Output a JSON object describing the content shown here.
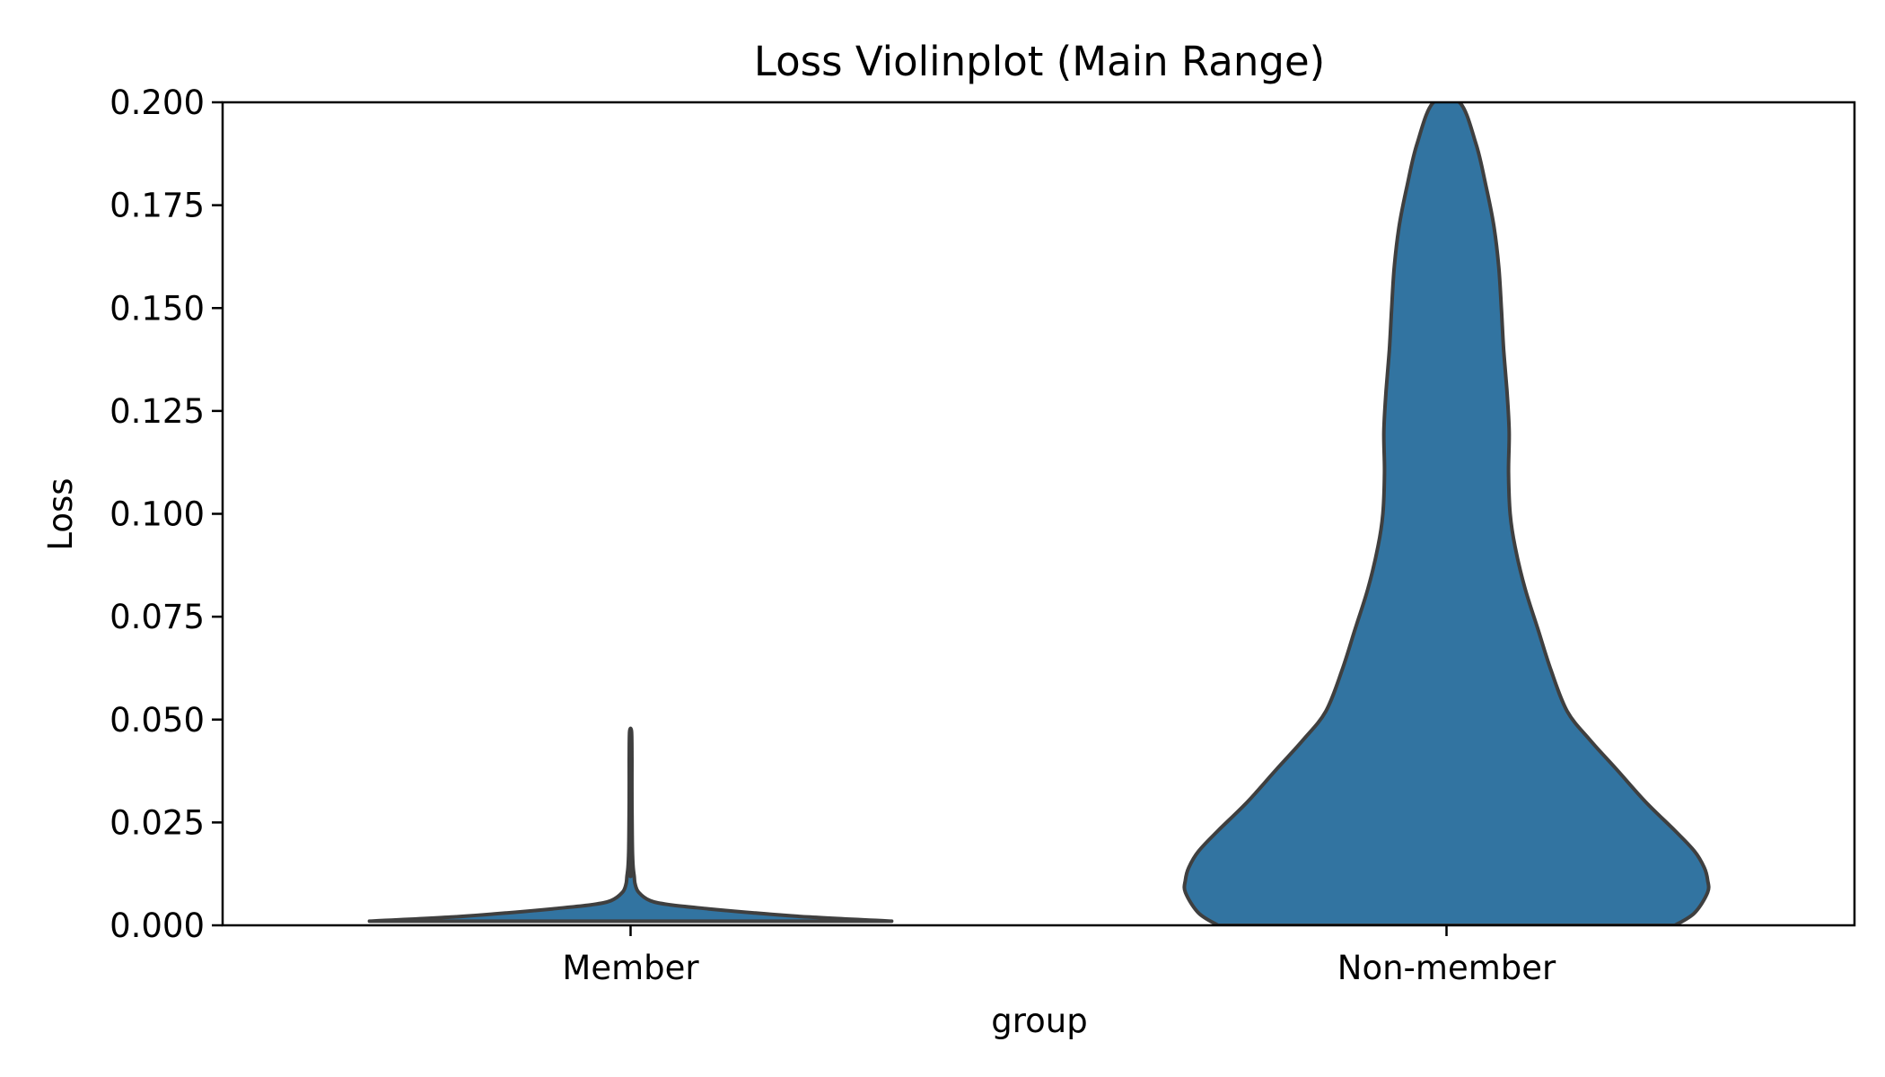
{
  "chart_data": {
    "type": "violin",
    "title": "Loss Violinplot (Main Range)",
    "xlabel": "group",
    "ylabel": "Loss",
    "ylim": [
      0,
      0.2
    ],
    "y_ticks": [
      0.0,
      0.025,
      0.05,
      0.075,
      0.1,
      0.125,
      0.15,
      0.175,
      0.2
    ],
    "y_tick_labels": [
      "0.000",
      "0.025",
      "0.050",
      "0.075",
      "0.100",
      "0.125",
      "0.150",
      "0.175",
      "0.200"
    ],
    "categories": [
      "Member",
      "Non-member"
    ],
    "grid": false,
    "fill_color": "#3274a1",
    "edge_color": "#3f3f3f",
    "violins": [
      {
        "name": "Member",
        "max_value": 0.047,
        "profile": [
          {
            "y": 0.001,
            "w": 0.8
          },
          {
            "y": 0.002,
            "w": 0.55
          },
          {
            "y": 0.003,
            "w": 0.38
          },
          {
            "y": 0.004,
            "w": 0.24
          },
          {
            "y": 0.005,
            "w": 0.12
          },
          {
            "y": 0.006,
            "w": 0.06
          },
          {
            "y": 0.008,
            "w": 0.025
          },
          {
            "y": 0.01,
            "w": 0.014
          },
          {
            "y": 0.012,
            "w": 0.011
          },
          {
            "y": 0.014,
            "w": 0.008
          },
          {
            "y": 0.017,
            "w": 0.006
          },
          {
            "y": 0.022,
            "w": 0.005
          },
          {
            "y": 0.03,
            "w": 0.004
          },
          {
            "y": 0.04,
            "w": 0.004
          },
          {
            "y": 0.047,
            "w": 0.003
          }
        ]
      },
      {
        "name": "Non-member",
        "max_value": 0.2,
        "profile": [
          {
            "y": 0.0,
            "w": 0.7
          },
          {
            "y": 0.003,
            "w": 0.76
          },
          {
            "y": 0.008,
            "w": 0.8
          },
          {
            "y": 0.011,
            "w": 0.8
          },
          {
            "y": 0.014,
            "w": 0.79
          },
          {
            "y": 0.018,
            "w": 0.76
          },
          {
            "y": 0.023,
            "w": 0.7
          },
          {
            "y": 0.03,
            "w": 0.61
          },
          {
            "y": 0.038,
            "w": 0.52
          },
          {
            "y": 0.045,
            "w": 0.44
          },
          {
            "y": 0.052,
            "w": 0.37
          },
          {
            "y": 0.062,
            "w": 0.32
          },
          {
            "y": 0.072,
            "w": 0.28
          },
          {
            "y": 0.082,
            "w": 0.24
          },
          {
            "y": 0.092,
            "w": 0.21
          },
          {
            "y": 0.1,
            "w": 0.195
          },
          {
            "y": 0.11,
            "w": 0.19
          },
          {
            "y": 0.12,
            "w": 0.192
          },
          {
            "y": 0.13,
            "w": 0.185
          },
          {
            "y": 0.14,
            "w": 0.175
          },
          {
            "y": 0.15,
            "w": 0.168
          },
          {
            "y": 0.16,
            "w": 0.16
          },
          {
            "y": 0.17,
            "w": 0.145
          },
          {
            "y": 0.18,
            "w": 0.12
          },
          {
            "y": 0.19,
            "w": 0.09
          },
          {
            "y": 0.2,
            "w": 0.04
          }
        ]
      }
    ]
  }
}
